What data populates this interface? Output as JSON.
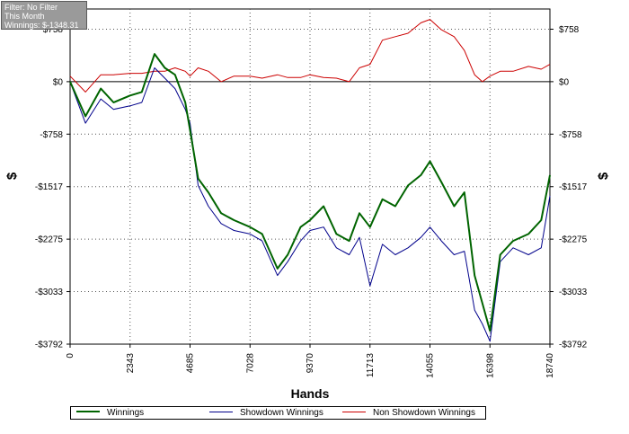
{
  "filter_box": {
    "line1": "Filter: No Filter",
    "line2": "This Month",
    "line3": "Winnings: $-1348.31"
  },
  "chart_data": {
    "type": "line",
    "title": "",
    "xlabel": "Hands",
    "ylabel_left": "$",
    "ylabel_right": "$",
    "xlim": [
      0,
      18740
    ],
    "ylim": [
      -3792,
      1050
    ],
    "x_ticks": [
      0,
      2343,
      4685,
      7028,
      9370,
      11713,
      14055,
      16398,
      18740
    ],
    "y_ticks": [
      758,
      0,
      -758,
      -1517,
      -2275,
      -3033,
      -3792
    ],
    "y_tick_labels": [
      "$758",
      "$0",
      "-$758",
      "-$1517",
      "-$2275",
      "-$3033",
      "-$3792"
    ],
    "grid": true,
    "legend_position": "bottom",
    "colors": {
      "winnings": "#006400",
      "showdown": "#00008b",
      "non_showdown": "#cc0000"
    },
    "x": [
      0,
      600,
      1200,
      1700,
      2343,
      2800,
      3300,
      3700,
      4100,
      4500,
      4685,
      5000,
      5400,
      5900,
      6400,
      7028,
      7500,
      8100,
      8500,
      9000,
      9370,
      9900,
      10400,
      10900,
      11300,
      11713,
      12200,
      12700,
      13200,
      13700,
      14055,
      14500,
      15000,
      15400,
      15800,
      16100,
      16398,
      16800,
      17300,
      17900,
      18400,
      18740
    ],
    "series": [
      {
        "name": "Winnings",
        "values": [
          0,
          -500,
          -100,
          -300,
          -200,
          -150,
          400,
          200,
          100,
          -300,
          -700,
          -1400,
          -1600,
          -1900,
          -2000,
          -2100,
          -2200,
          -2700,
          -2500,
          -2100,
          -2000,
          -1800,
          -2200,
          -2300,
          -1900,
          -2100,
          -1700,
          -1800,
          -1500,
          -1350,
          -1150,
          -1450,
          -1800,
          -1600,
          -2800,
          -3200,
          -3600,
          -2500,
          -2300,
          -2200,
          -2000,
          -1350
        ]
      },
      {
        "name": "Showdown Winnings",
        "values": [
          0,
          -600,
          -250,
          -400,
          -350,
          -300,
          200,
          50,
          -100,
          -400,
          -600,
          -1500,
          -1800,
          -2050,
          -2150,
          -2200,
          -2300,
          -2800,
          -2600,
          -2300,
          -2150,
          -2100,
          -2400,
          -2500,
          -2250,
          -2950,
          -2350,
          -2500,
          -2400,
          -2250,
          -2100,
          -2300,
          -2500,
          -2450,
          -3300,
          -3500,
          -3750,
          -2600,
          -2400,
          -2500,
          -2400,
          -1650
        ]
      },
      {
        "name": "Non Showdown Winnings",
        "values": [
          80,
          -150,
          100,
          100,
          120,
          120,
          150,
          150,
          200,
          150,
          80,
          200,
          150,
          0,
          80,
          80,
          50,
          100,
          60,
          60,
          100,
          60,
          50,
          0,
          200,
          250,
          600,
          650,
          700,
          850,
          900,
          750,
          650,
          450,
          100,
          0,
          80,
          150,
          150,
          220,
          180,
          250
        ]
      }
    ]
  }
}
